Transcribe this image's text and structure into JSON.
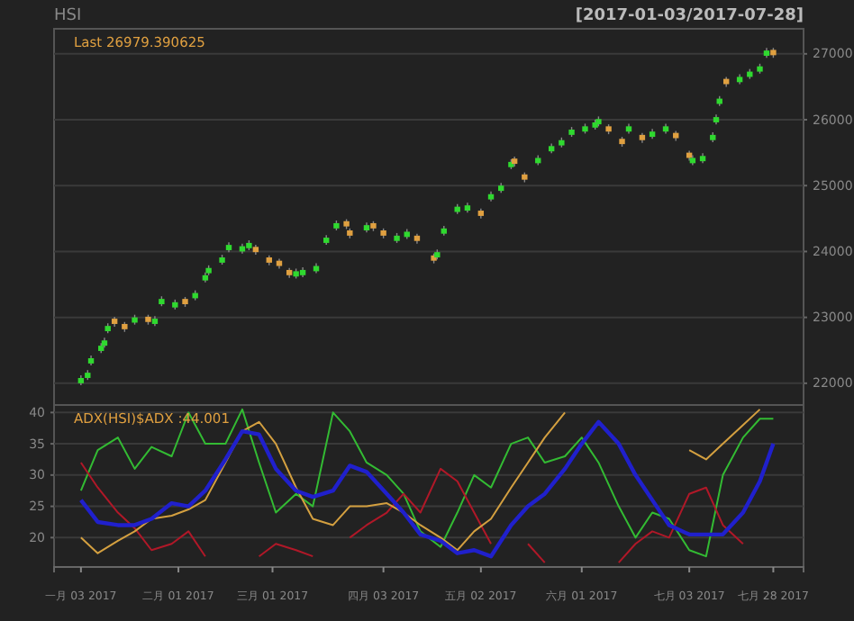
{
  "chart_data": [
    {
      "type": "candlestick",
      "title": "HSI",
      "subtitle": "[2017-01-03/2017-07-28]",
      "annotations": [
        "Last 26979.390625"
      ],
      "x": [
        "2017-01-03",
        "2017-01-05",
        "2017-01-06",
        "2017-01-09",
        "2017-01-10",
        "2017-01-11",
        "2017-01-13",
        "2017-01-16",
        "2017-01-19",
        "2017-01-23",
        "2017-01-25",
        "2017-01-27",
        "2017-01-31",
        "2017-02-03",
        "2017-02-06",
        "2017-02-09",
        "2017-02-10",
        "2017-02-14",
        "2017-02-16",
        "2017-02-20",
        "2017-02-22",
        "2017-02-24",
        "2017-02-28",
        "2017-03-03",
        "2017-03-06",
        "2017-03-08",
        "2017-03-10",
        "2017-03-14",
        "2017-03-17",
        "2017-03-20",
        "2017-03-23",
        "2017-03-24",
        "2017-03-29",
        "2017-03-31",
        "2017-04-03",
        "2017-04-07",
        "2017-04-10",
        "2017-04-13",
        "2017-04-18",
        "2017-04-19",
        "2017-04-21",
        "2017-04-25",
        "2017-04-28",
        "2017-05-02",
        "2017-05-05",
        "2017-05-08",
        "2017-05-11",
        "2017-05-12",
        "2017-05-15",
        "2017-05-19",
        "2017-05-23",
        "2017-05-26",
        "2017-05-29",
        "2017-06-02",
        "2017-06-05",
        "2017-06-06",
        "2017-06-09",
        "2017-06-13",
        "2017-06-15",
        "2017-06-19",
        "2017-06-22",
        "2017-06-26",
        "2017-06-29",
        "2017-07-03",
        "2017-07-04",
        "2017-07-07",
        "2017-07-10",
        "2017-07-11",
        "2017-07-12",
        "2017-07-14",
        "2017-07-18",
        "2017-07-21",
        "2017-07-24",
        "2017-07-26",
        "2017-07-28"
      ],
      "ohlc": [
        [
          22000,
          22120,
          21970,
          22080
        ],
        [
          22080,
          22200,
          22050,
          22160
        ],
        [
          22300,
          22420,
          22270,
          22380
        ],
        [
          22490,
          22610,
          22460,
          22570
        ],
        [
          22570,
          22690,
          22540,
          22650
        ],
        [
          22790,
          22910,
          22760,
          22870
        ],
        [
          22980,
          23010,
          22860,
          22900
        ],
        [
          22900,
          22930,
          22780,
          22820
        ],
        [
          22920,
          23040,
          22890,
          23000
        ],
        [
          23010,
          23040,
          22890,
          22930
        ],
        [
          22900,
          23020,
          22870,
          22980
        ],
        [
          23200,
          23320,
          23170,
          23280
        ],
        [
          23150,
          23270,
          23120,
          23230
        ],
        [
          23280,
          23310,
          23160,
          23200
        ],
        [
          23290,
          23410,
          23260,
          23370
        ],
        [
          23560,
          23680,
          23530,
          23640
        ],
        [
          23670,
          23790,
          23640,
          23750
        ],
        [
          23830,
          23950,
          23800,
          23910
        ],
        [
          24020,
          24140,
          23990,
          24100
        ],
        [
          24000,
          24120,
          23970,
          24080
        ],
        [
          24050,
          24170,
          24020,
          24130
        ],
        [
          24070,
          24100,
          23950,
          23990
        ],
        [
          23910,
          23940,
          23790,
          23830
        ],
        [
          23860,
          23890,
          23740,
          23780
        ],
        [
          23720,
          23750,
          23600,
          23640
        ],
        [
          23620,
          23740,
          23590,
          23700
        ],
        [
          23640,
          23760,
          23610,
          23720
        ],
        [
          23700,
          23820,
          23670,
          23780
        ],
        [
          24130,
          24250,
          24100,
          24210
        ],
        [
          24350,
          24470,
          24320,
          24430
        ],
        [
          24460,
          24490,
          24340,
          24380
        ],
        [
          24320,
          24350,
          24200,
          24240
        ],
        [
          24320,
          24440,
          24290,
          24400
        ],
        [
          24430,
          24460,
          24310,
          24350
        ],
        [
          24320,
          24350,
          24200,
          24240
        ],
        [
          24160,
          24280,
          24130,
          24240
        ],
        [
          24220,
          24340,
          24190,
          24300
        ],
        [
          24240,
          24270,
          24120,
          24160
        ],
        [
          23940,
          23970,
          23820,
          23860
        ],
        [
          23910,
          24030,
          23880,
          23990
        ],
        [
          24270,
          24390,
          24240,
          24350
        ],
        [
          24600,
          24720,
          24570,
          24680
        ],
        [
          24620,
          24740,
          24590,
          24700
        ],
        [
          24620,
          24650,
          24500,
          24540
        ],
        [
          24790,
          24910,
          24760,
          24870
        ],
        [
          24920,
          25040,
          24890,
          25000
        ],
        [
          25280,
          25400,
          25250,
          25360
        ],
        [
          25410,
          25440,
          25290,
          25330
        ],
        [
          25170,
          25200,
          25050,
          25090
        ],
        [
          25340,
          25460,
          25310,
          25420
        ],
        [
          25520,
          25640,
          25490,
          25600
        ],
        [
          25610,
          25730,
          25580,
          25690
        ],
        [
          25770,
          25890,
          25740,
          25850
        ],
        [
          25820,
          25940,
          25790,
          25900
        ],
        [
          25880,
          26000,
          25850,
          25960
        ],
        [
          25930,
          26050,
          25900,
          26010
        ],
        [
          25900,
          25930,
          25780,
          25820
        ],
        [
          25710,
          25740,
          25590,
          25630
        ],
        [
          25820,
          25940,
          25790,
          25900
        ],
        [
          25770,
          25800,
          25650,
          25690
        ],
        [
          25740,
          25860,
          25710,
          25820
        ],
        [
          25820,
          25940,
          25790,
          25900
        ],
        [
          25800,
          25830,
          25680,
          25720
        ],
        [
          25500,
          25530,
          25380,
          25420
        ],
        [
          25340,
          25460,
          25310,
          25420
        ],
        [
          25370,
          25490,
          25340,
          25450
        ],
        [
          25690,
          25810,
          25660,
          25770
        ],
        [
          25960,
          26080,
          25930,
          26040
        ],
        [
          26240,
          26360,
          26210,
          26320
        ],
        [
          26620,
          26650,
          26500,
          26540
        ],
        [
          26570,
          26690,
          26540,
          26650
        ],
        [
          26650,
          26770,
          26620,
          26730
        ],
        [
          26730,
          26850,
          26700,
          26810
        ],
        [
          26970,
          27090,
          26940,
          27050
        ],
        [
          27060,
          27090,
          26940,
          26979
        ]
      ],
      "colors": [
        "#2fd92f",
        "#2fd92f",
        "#2fd92f",
        "#2fd92f",
        "#2fd92f",
        "#2fd92f",
        "#e0a040",
        "#e0a040",
        "#2fd92f",
        "#e0a040",
        "#2fd92f",
        "#2fd92f",
        "#2fd92f",
        "#e0a040",
        "#2fd92f",
        "#2fd92f",
        "#2fd92f",
        "#2fd92f",
        "#2fd92f",
        "#2fd92f",
        "#2fd92f",
        "#e0a040",
        "#e0a040",
        "#e0a040",
        "#e0a040",
        "#2fd92f",
        "#2fd92f",
        "#2fd92f",
        "#2fd92f",
        "#2fd92f",
        "#e0a040",
        "#e0a040",
        "#2fd92f",
        "#e0a040",
        "#e0a040",
        "#2fd92f",
        "#2fd92f",
        "#e0a040",
        "#e0a040",
        "#2fd92f",
        "#2fd92f",
        "#2fd92f",
        "#2fd92f",
        "#e0a040",
        "#2fd92f",
        "#2fd92f",
        "#2fd92f",
        "#e0a040",
        "#e0a040",
        "#2fd92f",
        "#2fd92f",
        "#2fd92f",
        "#2fd92f",
        "#2fd92f",
        "#2fd92f",
        "#2fd92f",
        "#e0a040",
        "#e0a040",
        "#2fd92f",
        "#e0a040",
        "#2fd92f",
        "#2fd92f",
        "#e0a040",
        "#e0a040",
        "#2fd92f",
        "#2fd92f",
        "#2fd92f",
        "#2fd92f",
        "#2fd92f",
        "#e0a040",
        "#2fd92f",
        "#2fd92f",
        "#2fd92f",
        "#2fd92f",
        "#e0a040"
      ],
      "xlim": [
        "2016-12-26",
        "2017-08-06"
      ],
      "ylim": [
        21670,
        27380
      ],
      "yticks": [
        22000,
        23000,
        24000,
        25000,
        26000,
        27000
      ],
      "grid": "y",
      "tick_labels": "y"
    },
    {
      "type": "line",
      "annotations": [
        "ADX(HSI)$ADX :44.001"
      ],
      "x": [
        "2017-01-03",
        "2017-01-08",
        "2017-01-14",
        "2017-01-19",
        "2017-01-24",
        "2017-01-30",
        "2017-02-04",
        "2017-02-09",
        "2017-02-15",
        "2017-02-20",
        "2017-02-25",
        "2017-03-02",
        "2017-03-08",
        "2017-03-13",
        "2017-03-19",
        "2017-03-24",
        "2017-03-29",
        "2017-04-04",
        "2017-04-09",
        "2017-04-14",
        "2017-04-20",
        "2017-04-25",
        "2017-04-30",
        "2017-05-05",
        "2017-05-11",
        "2017-05-16",
        "2017-05-21",
        "2017-05-27",
        "2017-06-01",
        "2017-06-06",
        "2017-06-12",
        "2017-06-17",
        "2017-06-22",
        "2017-06-27",
        "2017-07-03",
        "2017-07-08",
        "2017-07-13",
        "2017-07-19",
        "2017-07-24",
        "2017-07-28"
      ],
      "series": [
        {
          "color": "#33bb33",
          "values": [
            27.5,
            34,
            36,
            31,
            34.5,
            33,
            40,
            35,
            35,
            40.5,
            32,
            24,
            27,
            25,
            40,
            37,
            32,
            30,
            27,
            21,
            18.5,
            24,
            30,
            28,
            35,
            36,
            32,
            33,
            36,
            32,
            25,
            20,
            24,
            23,
            18,
            17,
            30,
            36,
            39,
            39
          ]
        },
        {
          "color": "#b01828",
          "values": [
            32,
            28,
            24,
            21.5,
            18,
            19,
            21,
            17,
            null,
            null,
            17,
            19,
            18,
            17,
            null,
            20,
            22,
            24,
            27,
            24,
            31,
            29,
            24,
            19,
            null,
            19,
            16,
            null,
            null,
            null,
            16,
            19,
            21,
            20,
            27,
            28,
            22,
            19,
            null,
            null
          ]
        },
        {
          "color": "#d4a040",
          "values": [
            20,
            17.5,
            19.5,
            21,
            23,
            23.5,
            24.5,
            26,
            32,
            37,
            38.5,
            35,
            28,
            23,
            22,
            25,
            25,
            25.5,
            24,
            22,
            20,
            18,
            21,
            23,
            28,
            32,
            36,
            40,
            null,
            null,
            null,
            null,
            null,
            null,
            34,
            32.5,
            35,
            38,
            40.5,
            null
          ]
        },
        {
          "color": "#2020cc",
          "values": [
            26,
            22.5,
            22,
            22,
            23,
            25.5,
            25,
            27.5,
            32.5,
            37,
            36.5,
            31,
            27.5,
            26.5,
            27.5,
            31.5,
            30.5,
            27,
            24,
            20.5,
            19.5,
            17.5,
            18,
            17,
            22,
            25,
            27,
            31,
            35,
            38.5,
            35,
            30,
            26,
            22,
            20.5,
            20.5,
            20.5,
            24,
            29,
            35
          ]
        }
      ],
      "xlim": [
        "2016-12-26",
        "2017-08-06"
      ],
      "xticks": [
        {
          "value": "2017-01-03",
          "label": "一月 03 2017"
        },
        {
          "value": "2017-02-01",
          "label": "二月 01 2017"
        },
        {
          "value": "2017-03-01",
          "label": "三月 01 2017"
        },
        {
          "value": "2017-04-03",
          "label": "四月 03 2017"
        },
        {
          "value": "2017-05-02",
          "label": "五月 02 2017"
        },
        {
          "value": "2017-06-01",
          "label": "六月 01 2017"
        },
        {
          "value": "2017-07-03",
          "label": "七月 03 2017"
        },
        {
          "value": "2017-07-28",
          "label": "七月 28 2017"
        }
      ],
      "ylim": [
        15.3,
        41.2
      ],
      "yticks": [
        20,
        25,
        30,
        35,
        40
      ],
      "grid": "y",
      "line_style": "solid",
      "marker": "none"
    }
  ]
}
